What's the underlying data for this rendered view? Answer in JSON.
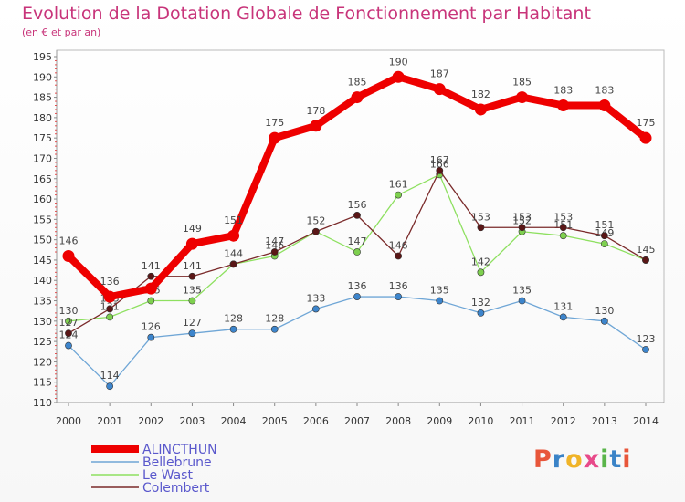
{
  "header": {
    "title": "Evolution de la Dotation Globale de Fonctionnement par Habitant",
    "subtitle": "(en € et par an)"
  },
  "logo": {
    "text": "Proxiti",
    "colors": [
      "#e8563a",
      "#3a83c7",
      "#f0b428",
      "#e84a8a",
      "#5ab54a",
      "#3a83c7",
      "#e8563a"
    ]
  },
  "chart_data": {
    "type": "line",
    "title": "Evolution de la Dotation Globale de Fonctionnement par Habitant",
    "subtitle": "(en € et par an)",
    "xlabel": "",
    "ylabel": "",
    "x": [
      "2000",
      "2001",
      "2002",
      "2003",
      "2004",
      "2005",
      "2006",
      "2007",
      "2008",
      "2009",
      "2010",
      "2011",
      "2012",
      "2013",
      "2014"
    ],
    "ylim": [
      110,
      195
    ],
    "yticks": [
      110,
      115,
      120,
      125,
      130,
      135,
      140,
      145,
      150,
      155,
      160,
      165,
      170,
      175,
      180,
      185,
      190,
      195
    ],
    "grid": false,
    "legend": "bottom-left",
    "series": [
      {
        "name": "ALINCTHUN",
        "color": "#ee0000",
        "marker": "#ee0000",
        "emphasis": true,
        "values": [
          146,
          136,
          138,
          149,
          151,
          175,
          178,
          185,
          190,
          187,
          182,
          185,
          183,
          183,
          175
        ],
        "labels": [
          "146",
          "136",
          "",
          "149",
          "151",
          "175",
          "178",
          "185",
          "190",
          "187",
          "182",
          "185",
          "183",
          "183",
          "175"
        ]
      },
      {
        "name": "Bellebrune",
        "color": "#6fa6d6",
        "marker": "#3d85cc",
        "values": [
          124,
          114,
          126,
          127,
          128,
          128,
          133,
          136,
          136,
          135,
          132,
          135,
          131,
          130,
          123
        ],
        "labels": [
          "124",
          "114",
          "126",
          "127",
          "128",
          "128",
          "133",
          "136",
          "136",
          "135",
          "132",
          "135",
          "131",
          "130",
          "123"
        ]
      },
      {
        "name": "Le Wast",
        "color": "#8ee060",
        "marker": "#7ed04f",
        "values": [
          130,
          131,
          135,
          135,
          144,
          146,
          152,
          147,
          161,
          166,
          142,
          152,
          151,
          149,
          145
        ],
        "labels": [
          "130",
          "131",
          "135",
          "135",
          "",
          "146",
          "",
          "147",
          "161",
          "166",
          "142",
          "152",
          "151",
          "149",
          ""
        ]
      },
      {
        "name": "Colembert",
        "color": "#7a2a2a",
        "marker": "#5a1616",
        "values": [
          127,
          133,
          141,
          141,
          144,
          147,
          152,
          156,
          146,
          167,
          153,
          153,
          153,
          151,
          145
        ],
        "labels": [
          "127",
          "133",
          "141",
          "141",
          "144",
          "147",
          "152",
          "156",
          "146",
          "167",
          "153",
          "153",
          "153",
          "151",
          "145"
        ]
      }
    ]
  }
}
